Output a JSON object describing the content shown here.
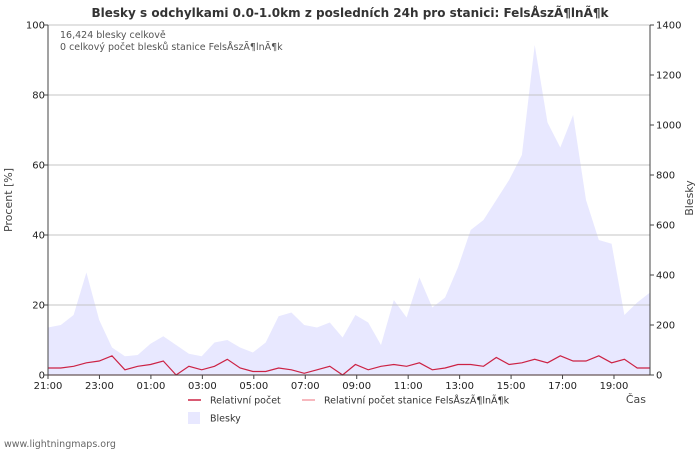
{
  "chart_data": {
    "type": "line",
    "title": "Blesky s odchylkami 0.0-1.0km z posledních 24h pro stanici: FelsÅszÃ¶lnÃ¶k",
    "xlabel": "Čas",
    "ylabel_left": "Procent   [%]",
    "ylabel_right": "Blesky",
    "ylim_left": [
      0,
      100
    ],
    "ylim_right": [
      0,
      1400
    ],
    "x_ticks": [
      "21:00",
      "23:00",
      "01:00",
      "03:00",
      "05:00",
      "07:00",
      "09:00",
      "11:00",
      "13:00",
      "15:00",
      "17:00",
      "19:00"
    ],
    "y_ticks_left": [
      "0",
      "20",
      "40",
      "60",
      "80",
      "100"
    ],
    "y_ticks_right": [
      "0",
      "200",
      "400",
      "600",
      "800",
      "1000",
      "1200",
      "1400"
    ],
    "info_lines": [
      "16,424 blesky celkově",
      "0 celkový počet blesků stanice FelsÅszÃ¶lnÃ¶k"
    ],
    "series": [
      {
        "name": "Relativní počet",
        "axis": "left",
        "color": "#cc2244",
        "values": [
          2,
          2,
          2.5,
          3.5,
          4,
          5.5,
          1.5,
          2.5,
          3,
          4,
          0,
          2.5,
          1.5,
          2.5,
          4.5,
          2,
          1,
          1,
          2,
          1.5,
          0.5,
          1.5,
          2.5,
          0,
          3,
          1.5,
          2.5,
          3,
          2.5,
          3.5,
          1.5,
          2,
          3,
          3,
          2.5,
          5,
          3,
          3.5,
          4.5,
          3.5,
          5.5,
          4,
          4,
          5.5,
          3.5,
          4.5,
          2,
          2
        ]
      },
      {
        "name": "Relativní počet stanice FelsÅszÃ¶lnÃ¶k",
        "axis": "left",
        "color": "#f4a0a8",
        "values": [
          0,
          0,
          0,
          0,
          0,
          0,
          0,
          0,
          0,
          0,
          0,
          0,
          0,
          0,
          0,
          0,
          0,
          0,
          0,
          0,
          0,
          0,
          0,
          0,
          0,
          0,
          0,
          0,
          0,
          0,
          0,
          0,
          0,
          0,
          0,
          0,
          0,
          0,
          0,
          0,
          0,
          0,
          0,
          0,
          0,
          0,
          0,
          0
        ]
      },
      {
        "name": "Blesky",
        "axis": "right",
        "type": "area",
        "color": "#e8e8ff",
        "values": [
          190,
          200,
          240,
          410,
          220,
          110,
          75,
          80,
          125,
          155,
          120,
          85,
          75,
          130,
          140,
          110,
          90,
          130,
          235,
          250,
          200,
          190,
          210,
          150,
          240,
          210,
          120,
          300,
          230,
          390,
          270,
          310,
          430,
          580,
          620,
          700,
          780,
          880,
          1320,
          1010,
          910,
          1040,
          700,
          540,
          525,
          240,
          290,
          330
        ]
      }
    ],
    "legend": [
      {
        "label": "Relativní počet",
        "kind": "line",
        "color": "#cc2244"
      },
      {
        "label": "Relativní počet stanice FelsÅszÃ¶lnÃ¶k",
        "kind": "line",
        "color": "#f4a0a8"
      },
      {
        "label": "Blesky",
        "kind": "area",
        "color": "#e8e8ff"
      }
    ]
  },
  "footer": "www.lightningmaps.org"
}
